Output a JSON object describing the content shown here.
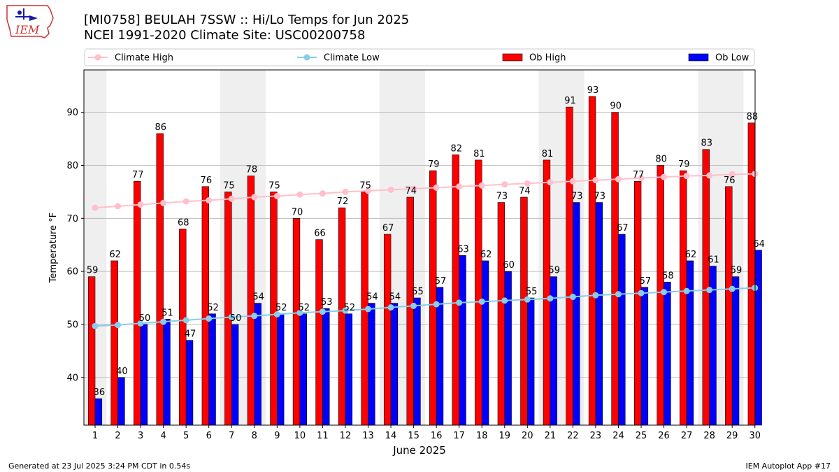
{
  "header": {
    "title_line1": "[MI0758] BEULAH 7SSW :: Hi/Lo Temps for Jun 2025",
    "title_line2": "NCEI 1991-2020 Climate Site: USC00200758"
  },
  "logo": {
    "text": "IEM",
    "icon": "iem-iowa-map-logo"
  },
  "footer": {
    "left": "Generated at 23 Jul 2025 3:24 PM CDT in 0.54s",
    "right": "IEM Autoplot App #17"
  },
  "colors": {
    "ob_high": "#ff0000",
    "ob_low": "#0000ff",
    "climate_high": "#ffc0cb",
    "climate_low": "#87ceeb",
    "weekend_shade": "#efefef",
    "grid": "#b0b0b0"
  },
  "chart_data": {
    "type": "bar",
    "title": "[MI0758] BEULAH 7SSW :: Hi/Lo Temps for Jun 2025",
    "subtitle": "NCEI 1991-2020 Climate Site: USC00200758",
    "xlabel": "June 2025",
    "ylabel": "Temperature °F",
    "ylim": [
      31,
      98
    ],
    "yticks": [
      40,
      50,
      60,
      70,
      80,
      90
    ],
    "grid": "y",
    "legend": "top",
    "categories": [
      "1",
      "2",
      "3",
      "4",
      "5",
      "6",
      "7",
      "8",
      "9",
      "10",
      "11",
      "12",
      "13",
      "14",
      "15",
      "16",
      "17",
      "18",
      "19",
      "20",
      "21",
      "22",
      "23",
      "24",
      "25",
      "26",
      "27",
      "28",
      "29",
      "30"
    ],
    "shaded_days": [
      1,
      7,
      8,
      14,
      15,
      21,
      22,
      28,
      29
    ],
    "series": [
      {
        "name": "Climate High",
        "kind": "line",
        "values": [
          72.0,
          72.3,
          72.6,
          72.9,
          73.2,
          73.4,
          73.7,
          74.0,
          74.2,
          74.5,
          74.7,
          75.0,
          75.2,
          75.4,
          75.6,
          75.8,
          76.0,
          76.2,
          76.4,
          76.6,
          76.8,
          77.0,
          77.2,
          77.4,
          77.6,
          77.8,
          78.0,
          78.1,
          78.3,
          78.4
        ]
      },
      {
        "name": "Climate Low",
        "kind": "line",
        "values": [
          49.7,
          49.9,
          50.2,
          50.5,
          50.8,
          51.1,
          51.4,
          51.6,
          51.9,
          52.2,
          52.4,
          52.6,
          52.9,
          53.2,
          53.5,
          53.8,
          54.1,
          54.3,
          54.5,
          54.7,
          54.9,
          55.2,
          55.5,
          55.7,
          55.9,
          56.1,
          56.3,
          56.5,
          56.7,
          56.9
        ]
      },
      {
        "name": "Ob High",
        "kind": "bar",
        "values": [
          59,
          62,
          77,
          86,
          68,
          76,
          75,
          78,
          75,
          70,
          66,
          72,
          75,
          67,
          74,
          79,
          82,
          81,
          73,
          74,
          81,
          91,
          93,
          90,
          77,
          80,
          79,
          83,
          76,
          88
        ]
      },
      {
        "name": "Ob Low",
        "kind": "bar",
        "values": [
          36,
          40,
          50,
          51,
          47,
          52,
          50,
          54,
          52,
          52,
          53,
          52,
          54,
          54,
          55,
          57,
          63,
          62,
          60,
          55,
          59,
          73,
          73,
          67,
          57,
          58,
          62,
          61,
          59,
          64
        ]
      }
    ]
  }
}
